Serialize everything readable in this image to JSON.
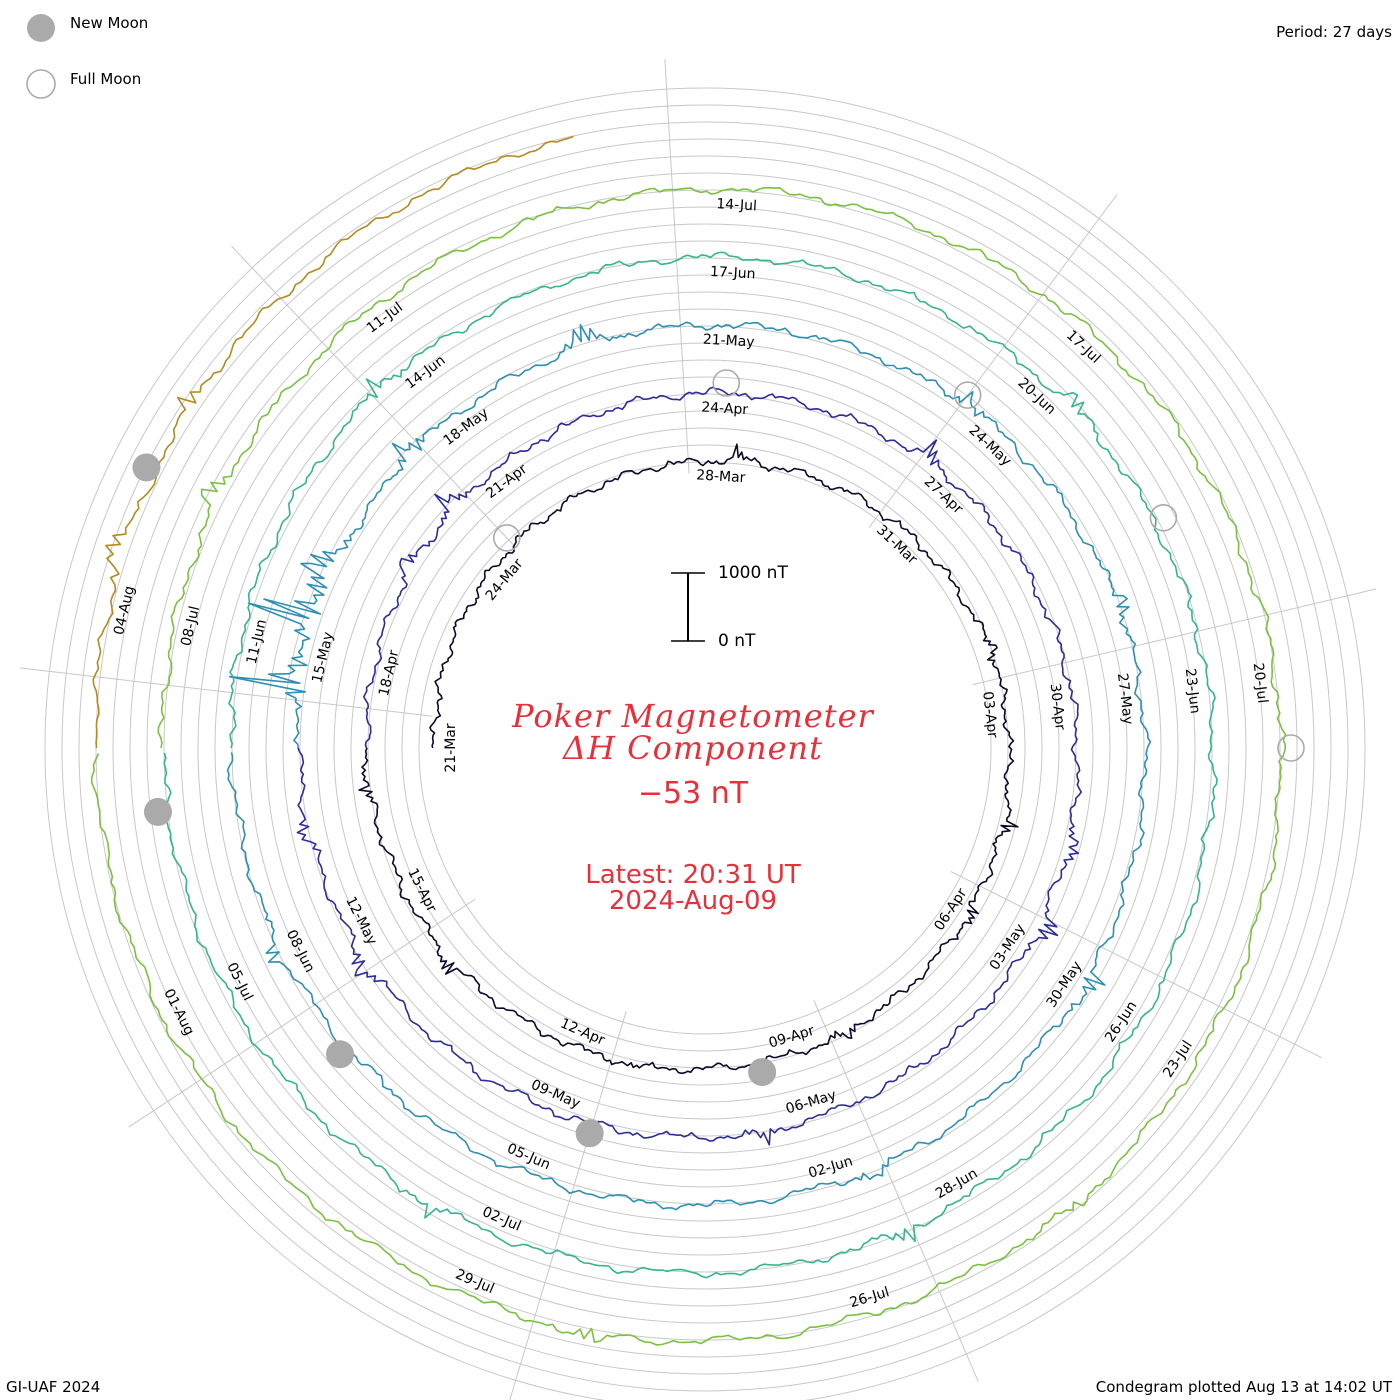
{
  "legend": {
    "new_moon_label": "New Moon",
    "full_moon_label": "Full Moon",
    "new_moon_color": "#aaaaaa",
    "full_moon_color": "#aaaaaa"
  },
  "period_label": "Period: 27 days",
  "title_line1": "Poker Magnetometer",
  "title_line2": "ΔH Component",
  "current_value": "−53 nT",
  "latest_time": "Latest: 20:31 UT",
  "latest_date": "2024-Aug-09",
  "scale_bar": {
    "top_label": "1000 nT",
    "bottom_label": "0 nT",
    "nt_top": 1000,
    "nt_bottom": 0
  },
  "footer_left": "GI-UAF 2024",
  "footer_right": "Condegram plotted Aug 13 at 14:02 UT",
  "chart_data": {
    "type": "line",
    "subtype": "condegram-spiral",
    "title": "Poker Magnetometer ΔH Component",
    "period_days": 27,
    "units": "nT",
    "start_date": "2024-03-21",
    "end_date": "2024-08-09",
    "latest": "2024-08-09 20:31 UT",
    "latest_value_nT": -53,
    "grid": true,
    "date_ticks": [
      {
        "label": "21-Mar",
        "day": 0
      },
      {
        "label": "24-Mar",
        "day": 3
      },
      {
        "label": "28-Mar",
        "day": 7
      },
      {
        "label": "31-Mar",
        "day": 10
      },
      {
        "label": "03-Apr",
        "day": 13
      },
      {
        "label": "06-Apr",
        "day": 16
      },
      {
        "label": "09-Apr",
        "day": 19
      },
      {
        "label": "12-Apr",
        "day": 22
      },
      {
        "label": "15-Apr",
        "day": 25
      },
      {
        "label": "18-Apr",
        "day": 28
      },
      {
        "label": "21-Apr",
        "day": 31
      },
      {
        "label": "24-Apr",
        "day": 34
      },
      {
        "label": "27-Apr",
        "day": 37
      },
      {
        "label": "30-Apr",
        "day": 40
      },
      {
        "label": "03-May",
        "day": 43
      },
      {
        "label": "06-May",
        "day": 46
      },
      {
        "label": "09-May",
        "day": 49
      },
      {
        "label": "12-May",
        "day": 52
      },
      {
        "label": "15-May",
        "day": 55
      },
      {
        "label": "18-May",
        "day": 58
      },
      {
        "label": "21-May",
        "day": 61
      },
      {
        "label": "24-May",
        "day": 64
      },
      {
        "label": "27-May",
        "day": 67
      },
      {
        "label": "30-May",
        "day": 70
      },
      {
        "label": "02-Jun",
        "day": 73
      },
      {
        "label": "05-Jun",
        "day": 76
      },
      {
        "label": "08-Jun",
        "day": 79
      },
      {
        "label": "11-Jun",
        "day": 82
      },
      {
        "label": "14-Jun",
        "day": 85
      },
      {
        "label": "17-Jun",
        "day": 88
      },
      {
        "label": "20-Jun",
        "day": 91
      },
      {
        "label": "23-Jun",
        "day": 94
      },
      {
        "label": "26-Jun",
        "day": 97
      },
      {
        "label": "28-Jun",
        "day": 99
      },
      {
        "label": "02-Jul",
        "day": 103
      },
      {
        "label": "05-Jul",
        "day": 106
      },
      {
        "label": "08-Jul",
        "day": 109
      },
      {
        "label": "11-Jul",
        "day": 112
      },
      {
        "label": "14-Jul",
        "day": 115
      },
      {
        "label": "17-Jul",
        "day": 118
      },
      {
        "label": "20-Jul",
        "day": 121
      },
      {
        "label": "23-Jul",
        "day": 124
      },
      {
        "label": "26-Jul",
        "day": 127
      },
      {
        "label": "29-Jul",
        "day": 130
      },
      {
        "label": "01-Aug",
        "day": 133
      },
      {
        "label": "04-Aug",
        "day": 136
      }
    ],
    "new_moon_days": [
      19.5,
      48.5,
      78,
      107.5,
      137
    ],
    "full_moon_days": [
      3.5,
      34,
      63.5,
      92.5,
      121.5
    ],
    "series": [
      {
        "color": "#0a0a2a",
        "start_day": 0,
        "end_day": 27
      },
      {
        "color": "#2c2c9a",
        "start_day": 27,
        "end_day": 54
      },
      {
        "color": "#2e8fb4",
        "start_day": 54,
        "end_day": 81
      },
      {
        "color": "#35b58e",
        "start_day": 81,
        "end_day": 108
      },
      {
        "color": "#7cc040",
        "start_day": 108,
        "end_day": 135
      },
      {
        "color": "#b58a1e",
        "start_day": 135,
        "end_day": 140.85
      }
    ],
    "disturbances": [
      {
        "day": 7.2,
        "amplitude_nT": 220
      },
      {
        "day": 12.0,
        "amplitude_nT": 300
      },
      {
        "day": 14.5,
        "amplitude_nT": 350
      },
      {
        "day": 15.8,
        "amplitude_nT": 260
      },
      {
        "day": 18.2,
        "amplitude_nT": 280
      },
      {
        "day": 21.0,
        "amplitude_nT": 190
      },
      {
        "day": 23.9,
        "amplitude_nT": 300
      },
      {
        "day": 26.4,
        "amplitude_nT": 320
      },
      {
        "day": 29.3,
        "amplitude_nT": 380
      },
      {
        "day": 30.2,
        "amplitude_nT": 450
      },
      {
        "day": 36.5,
        "amplitude_nT": 380
      },
      {
        "day": 41.5,
        "amplitude_nT": 420
      },
      {
        "day": 42.5,
        "amplitude_nT": 500
      },
      {
        "day": 46.5,
        "amplitude_nT": 330
      },
      {
        "day": 51.5,
        "amplitude_nT": 400
      },
      {
        "day": 53.0,
        "amplitude_nT": 350
      },
      {
        "day": 54.6,
        "amplitude_nT": 1400
      },
      {
        "day": 55.3,
        "amplitude_nT": 1500
      },
      {
        "day": 55.8,
        "amplitude_nT": 900
      },
      {
        "day": 57.3,
        "amplitude_nT": 500
      },
      {
        "day": 59.4,
        "amplitude_nT": 550
      },
      {
        "day": 63.5,
        "amplitude_nT": 350
      },
      {
        "day": 66.0,
        "amplitude_nT": 330
      },
      {
        "day": 69.8,
        "amplitude_nT": 380
      },
      {
        "day": 72.5,
        "amplitude_nT": 300
      },
      {
        "day": 79.0,
        "amplitude_nT": 320
      },
      {
        "day": 84.5,
        "amplitude_nT": 400
      },
      {
        "day": 91.2,
        "amplitude_nT": 300
      },
      {
        "day": 99.5,
        "amplitude_nT": 300
      },
      {
        "day": 103.5,
        "amplitude_nT": 280
      },
      {
        "day": 110.0,
        "amplitude_nT": 350
      },
      {
        "day": 125.2,
        "amplitude_nT": 260
      },
      {
        "day": 129.0,
        "amplitude_nT": 320
      },
      {
        "day": 136.3,
        "amplitude_nT": 500
      },
      {
        "day": 137.5,
        "amplitude_nT": 300
      }
    ]
  }
}
